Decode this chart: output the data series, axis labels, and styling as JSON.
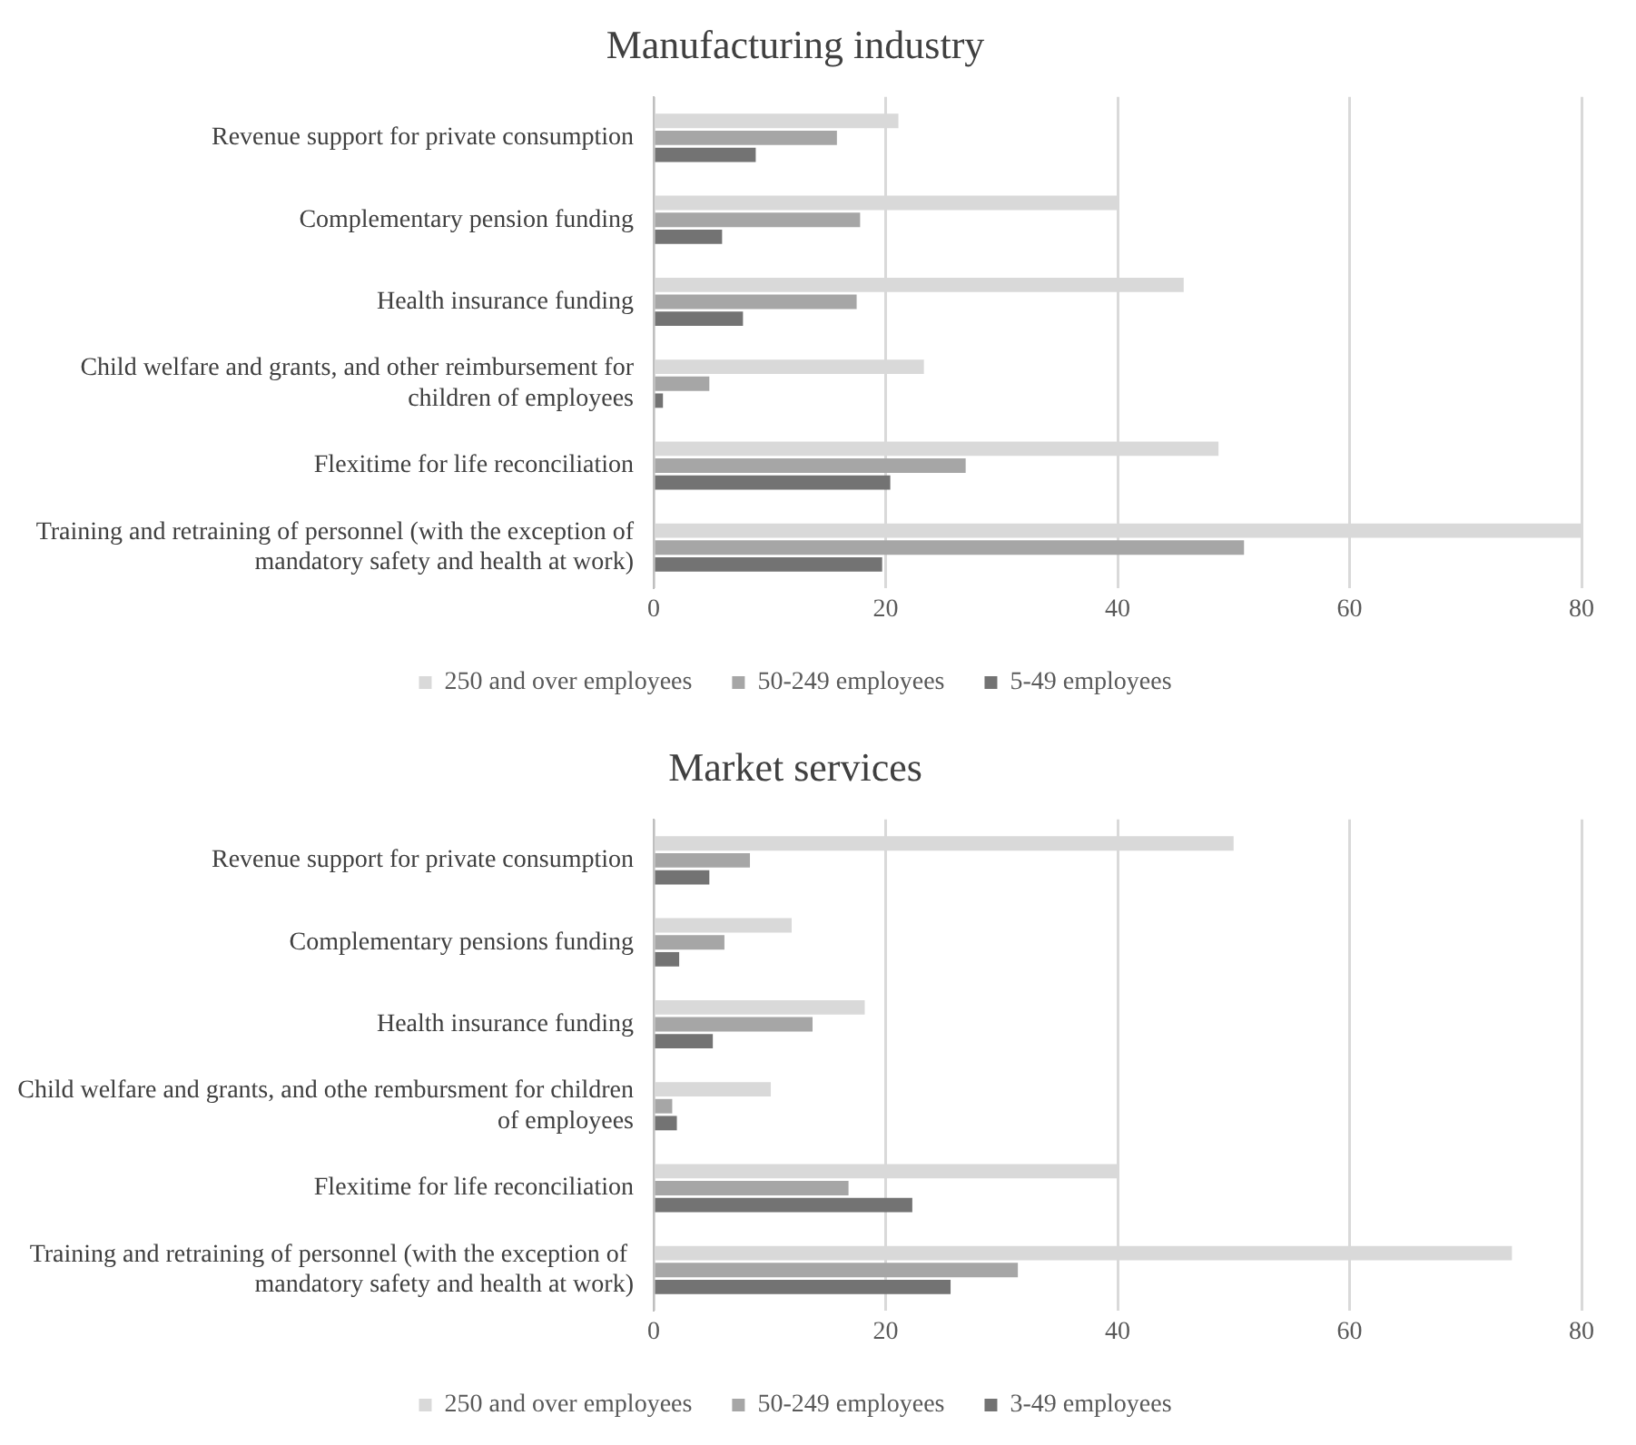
{
  "chart_data": [
    {
      "type": "bar",
      "orientation": "horizontal",
      "title": "Manufacturing industry",
      "categories": [
        "Revenue support for private consumption",
        "Complementary pension funding",
        "Health insurance funding",
        "Child welfare and grants, and other reimbursement for children of employees",
        "Flexitime for life reconciliation",
        "Training and retraining of personnel (with the exception of mandatory safety and health at work)"
      ],
      "series": [
        {
          "name": "250 and over employees",
          "color": "#d9d9d9",
          "values": [
            21.1,
            40,
            45.7,
            23.3,
            48.7,
            80
          ]
        },
        {
          "name": "50-249 employees",
          "color": "#a6a6a6",
          "values": [
            15.8,
            17.8,
            17.5,
            4.8,
            26.9,
            50.9
          ]
        },
        {
          "name": "5-49 employees",
          "color": "#737373",
          "values": [
            8.8,
            5.9,
            7.7,
            0.8,
            20.4,
            19.7
          ]
        }
      ],
      "xlim": [
        0,
        80
      ],
      "xticks": [
        0,
        20,
        40,
        60,
        80
      ],
      "grid": "x",
      "legend": "bottom"
    },
    {
      "type": "bar",
      "orientation": "horizontal",
      "title": "Market services",
      "categories": [
        "Revenue support for private consumption",
        "Complementary pensions funding",
        "Health insurance funding",
        "Child welfare and grants, and othe rembursment for children of employees",
        "Flexitime for life reconciliation",
        "Training and retraining of personnel (with the exception of  mandatory safety and health at work)"
      ],
      "series": [
        {
          "name": "250 and over employees",
          "color": "#d9d9d9",
          "values": [
            50,
            11.9,
            18.2,
            10.1,
            40,
            74
          ]
        },
        {
          "name": "50-249 employees",
          "color": "#a6a6a6",
          "values": [
            8.3,
            6.1,
            13.7,
            1.6,
            16.8,
            31.4
          ]
        },
        {
          "name": "3-49 employees",
          "color": "#737373",
          "values": [
            4.8,
            2.2,
            5.1,
            2,
            22.3,
            25.6
          ]
        }
      ],
      "xlim": [
        0,
        80
      ],
      "xticks": [
        0,
        20,
        40,
        60,
        80
      ],
      "grid": "x",
      "legend": "bottom"
    }
  ]
}
